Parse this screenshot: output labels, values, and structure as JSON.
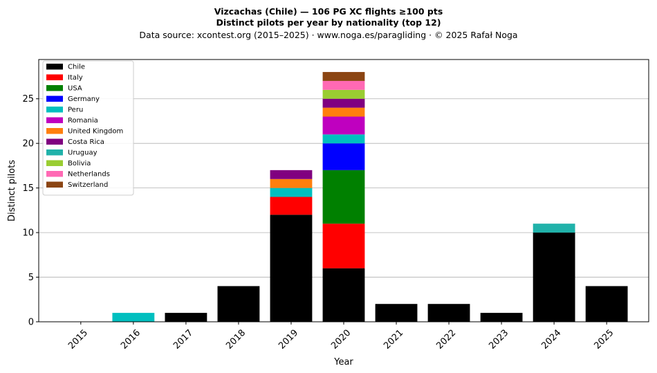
{
  "chart_data": {
    "type": "bar",
    "stacked": true,
    "title": "Vizcachas (Chile)  —  106 PG XC flights ≥100 pts",
    "subtitle": "Distinct pilots per year by nationality (top 12)",
    "source": "Data source: xcontest.org (2015–2025)  ·  www.noga.es/paragliding  ·  © 2025 Rafał Noga",
    "xlabel": "Year",
    "ylabel": "Distinct pilots",
    "categories": [
      "2015",
      "2016",
      "2017",
      "2018",
      "2019",
      "2020",
      "2021",
      "2022",
      "2023",
      "2024",
      "2025"
    ],
    "ylim": [
      0,
      29.4
    ],
    "yticks": [
      0,
      5,
      10,
      15,
      20,
      25
    ],
    "grid": "y",
    "legend_position": "top-left",
    "series": [
      {
        "name": "Chile",
        "color": "#000000",
        "values": [
          0,
          0,
          1,
          4,
          12,
          6,
          2,
          2,
          1,
          10,
          4
        ]
      },
      {
        "name": "Italy",
        "color": "#ff0000",
        "values": [
          0,
          0,
          0,
          0,
          2,
          5,
          0,
          0,
          0,
          0,
          0
        ]
      },
      {
        "name": "USA",
        "color": "#008000",
        "values": [
          0,
          0,
          0,
          0,
          0,
          6,
          0,
          0,
          0,
          0,
          0
        ]
      },
      {
        "name": "Germany",
        "color": "#0000ff",
        "values": [
          0,
          0,
          0,
          0,
          0,
          3,
          0,
          0,
          0,
          0,
          0
        ]
      },
      {
        "name": "Peru",
        "color": "#00bfbf",
        "values": [
          0,
          1,
          0,
          0,
          1,
          1,
          0,
          0,
          0,
          0,
          0
        ]
      },
      {
        "name": "Romania",
        "color": "#bf00bf",
        "values": [
          0,
          0,
          0,
          0,
          0,
          2,
          0,
          0,
          0,
          0,
          0
        ]
      },
      {
        "name": "United Kingdom",
        "color": "#ff7f0e",
        "values": [
          0,
          0,
          0,
          0,
          1,
          1,
          0,
          0,
          0,
          0,
          0
        ]
      },
      {
        "name": "Costa Rica",
        "color": "#800080",
        "values": [
          0,
          0,
          0,
          0,
          1,
          1,
          0,
          0,
          0,
          0,
          0
        ]
      },
      {
        "name": "Uruguay",
        "color": "#20b2aa",
        "values": [
          0,
          0,
          0,
          0,
          0,
          0,
          0,
          0,
          0,
          1,
          0
        ]
      },
      {
        "name": "Bolivia",
        "color": "#9acd32",
        "values": [
          0,
          0,
          0,
          0,
          0,
          1,
          0,
          0,
          0,
          0,
          0
        ]
      },
      {
        "name": "Netherlands",
        "color": "#ff69b4",
        "values": [
          0,
          0,
          0,
          0,
          0,
          1,
          0,
          0,
          0,
          0,
          0
        ]
      },
      {
        "name": "Switzerland",
        "color": "#8b4513",
        "values": [
          0,
          0,
          0,
          0,
          0,
          1,
          0,
          0,
          0,
          0,
          0
        ]
      }
    ]
  }
}
